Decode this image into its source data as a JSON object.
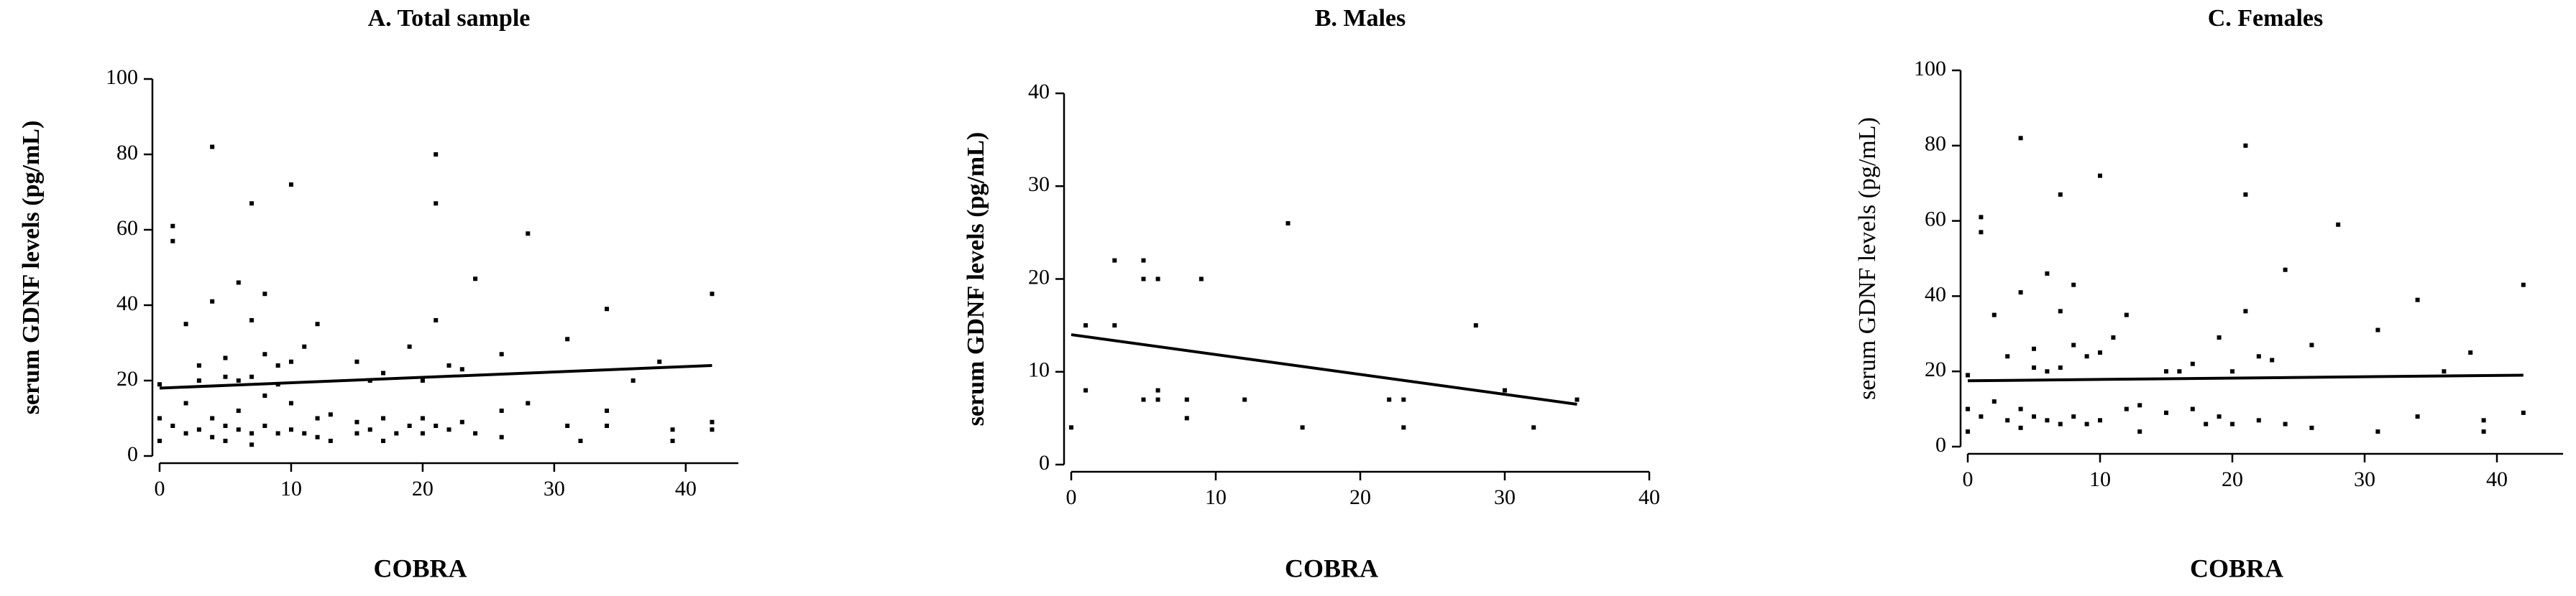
{
  "chart_data": [
    {
      "type": "scatter",
      "title": "A. Total sample",
      "xlabel": "COBRA",
      "ylabel": "serum GDNF levels (pg/mL)",
      "ylabel_bold": true,
      "color": "#000000",
      "xlim": [
        0,
        44
      ],
      "xticks": [
        0,
        10,
        20,
        30,
        40
      ],
      "ylim": [
        0,
        100
      ],
      "yticks": [
        0,
        20,
        40,
        60,
        80,
        100
      ],
      "x": [
        0,
        0,
        0,
        1,
        1,
        1,
        2,
        2,
        2,
        3,
        3,
        3,
        4,
        4,
        4,
        4,
        5,
        5,
        5,
        5,
        6,
        6,
        6,
        6,
        7,
        7,
        7,
        7,
        7,
        8,
        8,
        8,
        8,
        9,
        9,
        9,
        10,
        10,
        10,
        10,
        11,
        11,
        12,
        12,
        12,
        13,
        13,
        15,
        15,
        15,
        16,
        16,
        17,
        17,
        17,
        18,
        19,
        19,
        20,
        20,
        20,
        21,
        21,
        21,
        21,
        22,
        22,
        23,
        23,
        24,
        24,
        26,
        26,
        26,
        28,
        28,
        31,
        31,
        32,
        34,
        34,
        34,
        36,
        38,
        39,
        39,
        42,
        42,
        42
      ],
      "values": [
        4,
        10,
        19,
        57,
        61,
        8,
        35,
        14,
        6,
        20,
        24,
        7,
        82,
        41,
        10,
        5,
        26,
        21,
        8,
        4,
        46,
        20,
        12,
        7,
        67,
        36,
        21,
        6,
        3,
        43,
        27,
        16,
        8,
        24,
        19,
        6,
        72,
        25,
        14,
        7,
        29,
        6,
        35,
        10,
        5,
        11,
        4,
        25,
        9,
        6,
        20,
        7,
        22,
        10,
        4,
        6,
        29,
        8,
        20,
        10,
        6,
        80,
        67,
        36,
        8,
        24,
        7,
        23,
        9,
        47,
        6,
        27,
        12,
        5,
        59,
        14,
        31,
        8,
        4,
        39,
        12,
        8,
        20,
        25,
        4,
        7,
        43,
        9,
        7
      ],
      "fit": {
        "x": [
          0,
          42
        ],
        "values": [
          18,
          24
        ]
      }
    },
    {
      "type": "scatter",
      "title": "B. Males",
      "xlabel": "COBRA",
      "ylabel": "serum GDNF levels (pg/mL)",
      "ylabel_bold": true,
      "color": "#000000",
      "xlim": [
        0,
        40
      ],
      "xticks": [
        0,
        10,
        20,
        30,
        40
      ],
      "ylim": [
        0,
        40
      ],
      "yticks": [
        0,
        10,
        20,
        30,
        40
      ],
      "x": [
        0,
        1,
        1,
        3,
        3,
        5,
        5,
        5,
        6,
        6,
        6,
        8,
        8,
        9,
        12,
        15,
        16,
        22,
        23,
        23,
        28,
        30,
        32,
        35
      ],
      "values": [
        4,
        15,
        8,
        22,
        15,
        22,
        20,
        7,
        20,
        8,
        7,
        7,
        5,
        20,
        7,
        26,
        4,
        7,
        7,
        4,
        15,
        8,
        4,
        7
      ],
      "fit": {
        "x": [
          0,
          35
        ],
        "values": [
          14,
          6.5
        ]
      }
    },
    {
      "type": "scatter",
      "title": "C. Females",
      "xlabel": "COBRA",
      "ylabel": "serum GDNF levels (pg/mL)",
      "ylabel_bold": false,
      "color": "#000000",
      "xlim": [
        0,
        45
      ],
      "xticks": [
        0,
        10,
        20,
        30,
        40
      ],
      "ylim": [
        0,
        100
      ],
      "yticks": [
        0,
        20,
        40,
        60,
        80,
        100
      ],
      "x": [
        0,
        0,
        0,
        1,
        1,
        1,
        2,
        2,
        3,
        3,
        4,
        4,
        4,
        4,
        5,
        5,
        5,
        6,
        6,
        6,
        7,
        7,
        7,
        7,
        8,
        8,
        8,
        9,
        9,
        10,
        10,
        10,
        11,
        12,
        12,
        13,
        13,
        15,
        15,
        16,
        17,
        17,
        18,
        19,
        19,
        20,
        20,
        21,
        21,
        21,
        22,
        22,
        23,
        24,
        24,
        26,
        26,
        28,
        31,
        31,
        34,
        34,
        36,
        38,
        39,
        39,
        42,
        42
      ],
      "values": [
        4,
        10,
        19,
        57,
        61,
        8,
        35,
        12,
        24,
        7,
        82,
        41,
        10,
        5,
        26,
        21,
        8,
        46,
        20,
        7,
        67,
        36,
        21,
        6,
        43,
        27,
        8,
        24,
        6,
        72,
        25,
        7,
        29,
        35,
        10,
        11,
        4,
        20,
        9,
        20,
        22,
        10,
        6,
        29,
        8,
        20,
        6,
        80,
        67,
        36,
        24,
        7,
        23,
        47,
        6,
        27,
        5,
        59,
        31,
        4,
        39,
        8,
        20,
        25,
        4,
        7,
        43,
        9
      ],
      "fit": {
        "x": [
          0,
          42
        ],
        "values": [
          17.5,
          19
        ]
      }
    }
  ]
}
